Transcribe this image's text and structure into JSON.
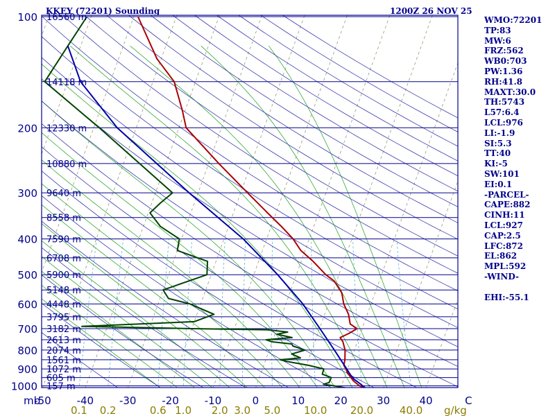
{
  "header": {
    "station": "KKEY (72201) Sounding",
    "time": "1200Z 26 NOV 25"
  },
  "indices": [
    "WMO:72201",
    "TP:83",
    "MW:6",
    "FRZ:562",
    "WB0:703",
    "PW:1.36",
    "RH:41.8",
    "MAXT:30.0",
    "TH:5743",
    "L57:6.4",
    "LCL:976",
    "LI:-1.9",
    "SI:5.3",
    "TT:40",
    "KI:-5",
    "SW:101",
    "EI:0.1",
    "-PARCEL-",
    "CAPE:882",
    "CINH:11",
    "LCL:927",
    "CAP:2.5",
    "LFC:872",
    "EL:862",
    "MPL:592",
    "-WIND-",
    "",
    "EHI:-55.1"
  ],
  "colors": {
    "isobar": "#00008b",
    "dry_adiabat": "#3a3ab0",
    "moist_adiabat": "#33aa33",
    "mixing_ratio": "#5ab4d8",
    "isotherm": "#8b8b66",
    "temperature": "#aa0000",
    "dewpoint": "#004400",
    "parcel": "#0000aa"
  },
  "chart_data": {
    "type": "line",
    "title": "KKEY (72201) Sounding",
    "subtitle": "1200Z 26 NOV 25",
    "pressure_unit": "mb",
    "pressure_ticks": [
      100,
      200,
      300,
      400,
      500,
      600,
      700,
      800,
      900,
      1000
    ],
    "pressure_tick_labels": [
      "100",
      "200",
      "300",
      "400",
      "500",
      "600",
      "700",
      "800",
      "900",
      "1000"
    ],
    "isobars": [
      {
        "p": 100,
        "height": "16560 m"
      },
      {
        "p": 150,
        "height": "14118 m"
      },
      {
        "p": 200,
        "height": "12330 m"
      },
      {
        "p": 250,
        "height": "10880 m"
      },
      {
        "p": 300,
        "height": "9640 m"
      },
      {
        "p": 350,
        "height": "8558 m"
      },
      {
        "p": 400,
        "height": "7590 m"
      },
      {
        "p": 450,
        "height": "6708 m"
      },
      {
        "p": 500,
        "height": "5900 m"
      },
      {
        "p": 550,
        "height": "5148 m"
      },
      {
        "p": 600,
        "height": "4448 m"
      },
      {
        "p": 650,
        "height": "3795 m"
      },
      {
        "p": 700,
        "height": "3182 m"
      },
      {
        "p": 750,
        "height": "2613 m"
      },
      {
        "p": 800,
        "height": "2074 m"
      },
      {
        "p": 850,
        "height": "1561 m"
      },
      {
        "p": 900,
        "height": "1072 m"
      },
      {
        "p": 950,
        "height": "605 m"
      },
      {
        "p": 1000,
        "height": "157 m"
      }
    ],
    "temperature_axis_labels": [
      {
        "t": -50,
        "label": "-50"
      },
      {
        "t": -40,
        "label": "-40"
      },
      {
        "t": -30,
        "label": "-30"
      },
      {
        "t": -20,
        "label": "-20"
      },
      {
        "t": -10,
        "label": "-10"
      },
      {
        "t": 0,
        "label": "0"
      },
      {
        "t": 10,
        "label": "10"
      },
      {
        "t": 20,
        "label": "20"
      },
      {
        "t": 30,
        "label": "30"
      },
      {
        "t": 40,
        "label": "40"
      },
      {
        "t": 50,
        "label": "C"
      }
    ],
    "mixing_ratio_labels": [
      {
        "w": 0.1,
        "label": "0.1"
      },
      {
        "w": 0.2,
        "label": "0.2"
      },
      {
        "w": 0.6,
        "label": "0.6"
      },
      {
        "w": 1.0,
        "label": "1.0"
      },
      {
        "w": 2.0,
        "label": "2.0"
      },
      {
        "w": 3.0,
        "label": "3.0"
      },
      {
        "w": 5.0,
        "label": "5.0"
      },
      {
        "w": 10.0,
        "label": "10.0"
      },
      {
        "w": 20.0,
        "label": "20.0"
      },
      {
        "w": 40.0,
        "label": "40.0"
      }
    ],
    "mixing_ratio_unit": "g/kg",
    "temperature_profile": [
      [
        1013,
        25.8
      ],
      [
        1000,
        24.2
      ],
      [
        970,
        22.4
      ],
      [
        925,
        20.4
      ],
      [
        900,
        19.6
      ],
      [
        880,
        18.8
      ],
      [
        850,
        18.6
      ],
      [
        800,
        17.8
      ],
      [
        760,
        16.6
      ],
      [
        740,
        15.6
      ],
      [
        720,
        17.4
      ],
      [
        700,
        18.8
      ],
      [
        680,
        16.8
      ],
      [
        640,
        15.6
      ],
      [
        600,
        13.6
      ],
      [
        560,
        12.2
      ],
      [
        520,
        9.4
      ],
      [
        500,
        6.9
      ],
      [
        460,
        2.8
      ],
      [
        430,
        -1.0
      ],
      [
        400,
        -3.8
      ],
      [
        370,
        -7.6
      ],
      [
        340,
        -12.0
      ],
      [
        300,
        -18.4
      ],
      [
        250,
        -27.6
      ],
      [
        200,
        -38.3
      ],
      [
        180,
        -40.6
      ],
      [
        150,
        -45.0
      ],
      [
        130,
        -51.0
      ],
      [
        100,
        -59.0
      ]
    ],
    "dewpoint_profile": [
      [
        1013,
        21.2
      ],
      [
        1000,
        18.3
      ],
      [
        990,
        15.6
      ],
      [
        980,
        16.8
      ],
      [
        950,
        16.9
      ],
      [
        930,
        14.5
      ],
      [
        900,
        14.4
      ],
      [
        880,
        10.5
      ],
      [
        860,
        5.4
      ],
      [
        850,
        3.4
      ],
      [
        840,
        8.0
      ],
      [
        820,
        5.6
      ],
      [
        800,
        8.4
      ],
      [
        780,
        5.2
      ],
      [
        770,
        4.8
      ],
      [
        760,
        0.0
      ],
      [
        750,
        -1.6
      ],
      [
        740,
        4.3
      ],
      [
        725,
        0.5
      ],
      [
        715,
        2.8
      ],
      [
        705,
        -2.0
      ],
      [
        700,
        -20.0
      ],
      [
        690,
        -46.0
      ],
      [
        670,
        -20.0
      ],
      [
        640,
        -16.0
      ],
      [
        600,
        -22.5
      ],
      [
        580,
        -28.0
      ],
      [
        550,
        -30.0
      ],
      [
        500,
        -21.0
      ],
      [
        460,
        -22.0
      ],
      [
        430,
        -30.0
      ],
      [
        400,
        -30.5
      ],
      [
        370,
        -36.0
      ],
      [
        340,
        -39.6
      ],
      [
        320,
        -38.0
      ],
      [
        300,
        -36.0
      ],
      [
        250,
        -46.2
      ],
      [
        200,
        -58.7
      ],
      [
        150,
        -75.4
      ],
      [
        120,
        -73.0
      ],
      [
        100,
        -71.0
      ]
    ],
    "parcel_profile": [
      [
        1013,
        25.8
      ],
      [
        975,
        23.4
      ],
      [
        960,
        22.4
      ],
      [
        930,
        21.0
      ],
      [
        900,
        19.8
      ],
      [
        850,
        17.6
      ],
      [
        800,
        15.3
      ],
      [
        700,
        10.1
      ],
      [
        600,
        4.0
      ],
      [
        500,
        -4.4
      ],
      [
        400,
        -15.5
      ],
      [
        300,
        -32.1
      ],
      [
        200,
        -54.5
      ],
      [
        150,
        -67.0
      ],
      [
        120,
        -73.0
      ]
    ]
  }
}
